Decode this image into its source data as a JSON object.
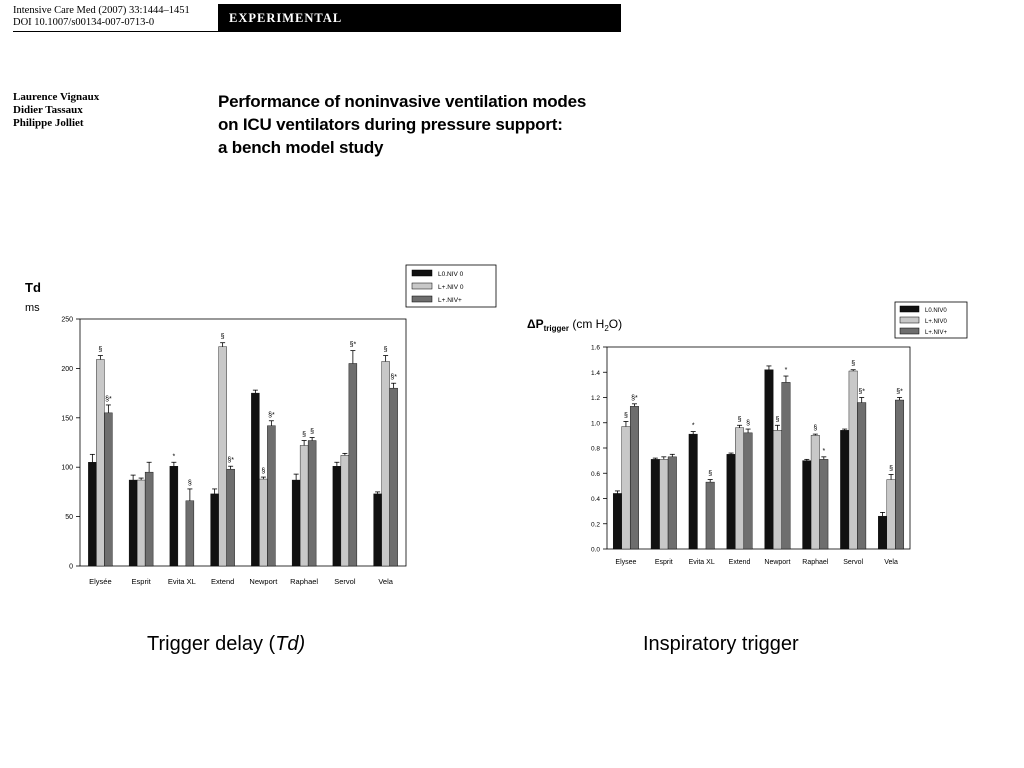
{
  "header": {
    "journal_line1": "Intensive Care Med (2007) 33:1444–1451",
    "journal_line2": "DOI 10.1007/s00134-007-0713-0",
    "section": "EXPERIMENTAL"
  },
  "authors": [
    "Laurence Vignaux",
    "Didier Tassaux",
    "Philippe Jolliet"
  ],
  "title_lines": [
    "Performance of noninvasive ventilation modes",
    "on ICU ventilators during pressure support:",
    "a bench model study"
  ],
  "captions": {
    "left_prefix": "Trigger delay (",
    "left_italic": "Td)",
    "right": "Inspiratory trigger"
  },
  "colors": {
    "black": "#111111",
    "light": "#c8c8c8",
    "dark": "#6e6e6e"
  },
  "chart_data": [
    {
      "type": "bar",
      "ylabel_main": "Td",
      "ylabel_unit": "ms",
      "categories": [
        "Elysée",
        "Esprit",
        "Evita XL",
        "Extend",
        "Newport",
        "Raphael",
        "Servol",
        "Vela"
      ],
      "ylim": [
        0,
        250
      ],
      "yticks": [
        0,
        50,
        100,
        150,
        200,
        250
      ],
      "legend_position": "top-right",
      "series": [
        {
          "name": "L0.NIV 0",
          "values": [
            105,
            87,
            101,
            73,
            175,
            87,
            101,
            73
          ],
          "errors": [
            8,
            5,
            4,
            5,
            3,
            6,
            4,
            2
          ],
          "marks": [
            "",
            "",
            "*",
            "",
            "",
            "",
            "",
            ""
          ]
        },
        {
          "name": "L+.NIV 0",
          "values": [
            209,
            87,
            null,
            222,
            88,
            122,
            112,
            207
          ],
          "errors": [
            4,
            2,
            0,
            4,
            2,
            5,
            2,
            6
          ],
          "marks": [
            "§",
            "",
            "",
            "§",
            "§",
            "§",
            "",
            "§"
          ]
        },
        {
          "name": "L+.NIV+",
          "values": [
            155,
            95,
            66,
            98,
            142,
            127,
            205,
            180
          ],
          "errors": [
            8,
            10,
            12,
            3,
            5,
            3,
            13,
            5
          ],
          "marks": [
            "§*",
            "",
            "§",
            "§*",
            "§*",
            "§",
            "§*",
            "§*"
          ]
        }
      ]
    },
    {
      "type": "bar",
      "ylabel": "ΔP",
      "ylabel_sub": "trigger",
      "ylabel_unit": " (cm H",
      "ylabel_unit_sub": "2",
      "ylabel_unit_end": "O)",
      "categories": [
        "Elysee",
        "Esprit",
        "Evita XL",
        "Extend",
        "Newport",
        "Raphael",
        "Servol",
        "Vela"
      ],
      "ylim": [
        0,
        1.6
      ],
      "yticks": [
        "0.0",
        "0.2",
        "0.4",
        "0.6",
        "0.8",
        "1.0",
        "1.2",
        "1.4",
        "1.6"
      ],
      "legend_position": "top-right",
      "series": [
        {
          "name": "L0.NIV0",
          "values": [
            0.44,
            0.71,
            0.91,
            0.75,
            1.42,
            0.7,
            0.94,
            0.26
          ],
          "errors": [
            0.02,
            0.01,
            0.02,
            0.01,
            0.03,
            0.01,
            0.01,
            0.03
          ],
          "marks": [
            "",
            "",
            "*",
            "",
            "",
            "",
            "",
            ""
          ]
        },
        {
          "name": "L+.NIV0",
          "values": [
            0.97,
            0.71,
            null,
            0.96,
            0.94,
            0.9,
            1.41,
            0.55
          ],
          "errors": [
            0.04,
            0.02,
            0,
            0.02,
            0.04,
            0.01,
            0.01,
            0.04
          ],
          "marks": [
            "§",
            "",
            "",
            "§",
            "§",
            "§",
            "§",
            "§"
          ]
        },
        {
          "name": "L+.NIV+",
          "values": [
            1.13,
            0.73,
            0.53,
            0.92,
            1.32,
            0.71,
            1.16,
            1.18
          ],
          "errors": [
            0.02,
            0.02,
            0.02,
            0.03,
            0.05,
            0.02,
            0.04,
            0.02
          ],
          "marks": [
            "§*",
            "",
            "§",
            "§",
            "*",
            "*",
            "§*",
            "§*"
          ]
        }
      ]
    }
  ]
}
